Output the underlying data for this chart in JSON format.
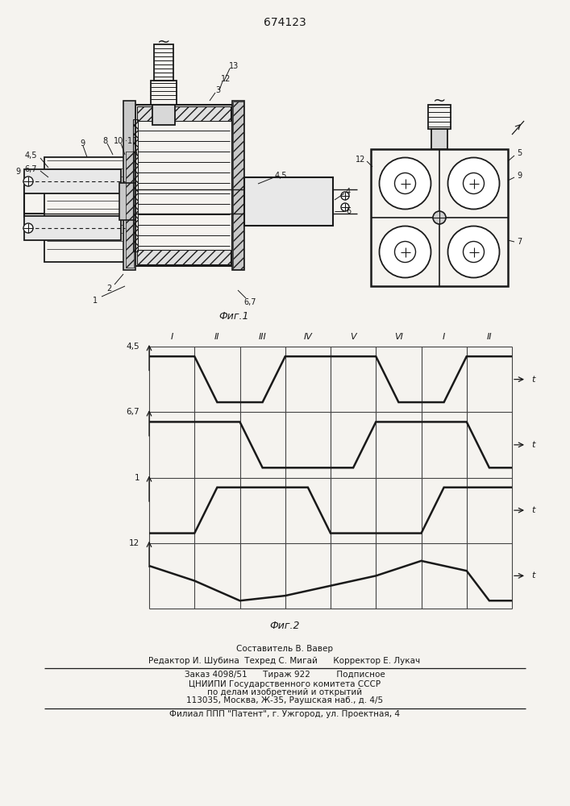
{
  "patent_number": "674123",
  "fig1_label": "Фиг.1",
  "fig2_label": "Фиг.2",
  "background_color": "#f5f3ef",
  "line_color": "#1a1a1a",
  "roman_numerals": [
    "I",
    "II",
    "III",
    "IV",
    "V",
    "VI",
    "I",
    "II"
  ],
  "signal_labels": [
    "4,5",
    "6,7",
    "1",
    "12"
  ],
  "bottom_texts": [
    "Составитель В. Вавер",
    "Редактор И. Шубина  Техред С. Мигай      Корректор Е. Лукач",
    "Заказ 4098/51      Тираж 922          Подписное",
    "ЦНИИПИ Государственного комитета СССР",
    "по делам изобретений и открытий",
    "113035, Москва, Ж-35, Раушская наб., д. 4/5",
    "Филиал ППП \"Патент\", г. Ужгород, ул. Проектная, 4"
  ]
}
